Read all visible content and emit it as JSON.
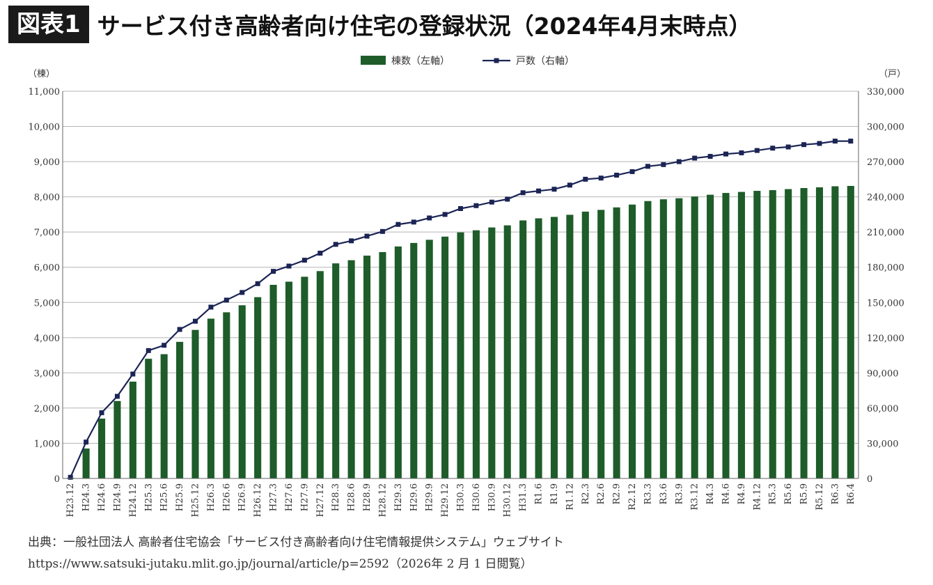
{
  "header": {
    "badge": "図表1",
    "title": "サービス付き高齢者向け住宅の登録状況（2024年4月末時点）"
  },
  "chart_data": {
    "type": "bar",
    "categories": [
      "H23.12",
      "H24.3",
      "H24.6",
      "H24.9",
      "H24.12",
      "H25.3",
      "H25.6",
      "H25.9",
      "H25.12",
      "H26.3",
      "H26.6",
      "H26.9",
      "H26.12",
      "H27.3",
      "H27.6",
      "H27.9",
      "H27.12",
      "H28.3",
      "H28.6",
      "H28.9",
      "H28.12",
      "H29.3",
      "H29.6",
      "H29.9",
      "H29.12",
      "H30.3",
      "H30.6",
      "H30.9",
      "H30.12",
      "H31.3",
      "R1.6",
      "R1.9",
      "R1.12",
      "R2.3",
      "R2.6",
      "R2.9",
      "R2.12",
      "R3.3",
      "R3.6",
      "R3.9",
      "R3.12",
      "R4.3",
      "R4.6",
      "R4.9",
      "R4.12",
      "R5.3",
      "R5.6",
      "R5.9",
      "R5.12",
      "R6.3",
      "R6.4"
    ],
    "series": [
      {
        "name": "棟数（左軸）",
        "type": "bar",
        "axis": "left",
        "color": "#1e5c2a",
        "values": [
          20,
          850,
          1700,
          2200,
          2750,
          3400,
          3530,
          3880,
          4220,
          4540,
          4720,
          4920,
          5150,
          5500,
          5590,
          5730,
          5890,
          6110,
          6200,
          6330,
          6430,
          6590,
          6690,
          6780,
          6870,
          6990,
          7050,
          7130,
          7190,
          7330,
          7390,
          7430,
          7490,
          7580,
          7630,
          7700,
          7780,
          7880,
          7930,
          7960,
          8010,
          8060,
          8110,
          8140,
          8170,
          8190,
          8220,
          8250,
          8270,
          8300,
          8310
        ]
      },
      {
        "name": "戸数（右軸）",
        "type": "line",
        "axis": "right",
        "color": "#1b2455",
        "values": [
          1000,
          31000,
          56000,
          70000,
          89000,
          109000,
          113500,
          127000,
          134000,
          146000,
          152000,
          158500,
          166000,
          176500,
          181000,
          186000,
          192000,
          199500,
          202500,
          206500,
          210500,
          216500,
          218500,
          222000,
          225000,
          230000,
          232500,
          235500,
          238000,
          243500,
          245000,
          246500,
          250000,
          255000,
          256000,
          258500,
          261500,
          266000,
          267500,
          270000,
          273000,
          274500,
          276500,
          277500,
          279500,
          281500,
          282500,
          284500,
          285500,
          287500,
          287500
        ]
      }
    ],
    "y_left": {
      "label": "（棟）",
      "min": 0,
      "max": 11000,
      "step": 1000
    },
    "y_right": {
      "label": "（戸）",
      "min": 0,
      "max": 330000,
      "step": 30000
    },
    "legend_position": "top-center",
    "grid": true
  },
  "source": {
    "line1": "出典：一般社団法人 高齢者住宅協会「サービス付き高齢者向け住宅情報提供システム」ウェブサイト",
    "line2": "https://www.satsuki-jutaku.mlit.go.jp/journal/article/p=2592（2026年 2 月 1 日閲覧）"
  }
}
